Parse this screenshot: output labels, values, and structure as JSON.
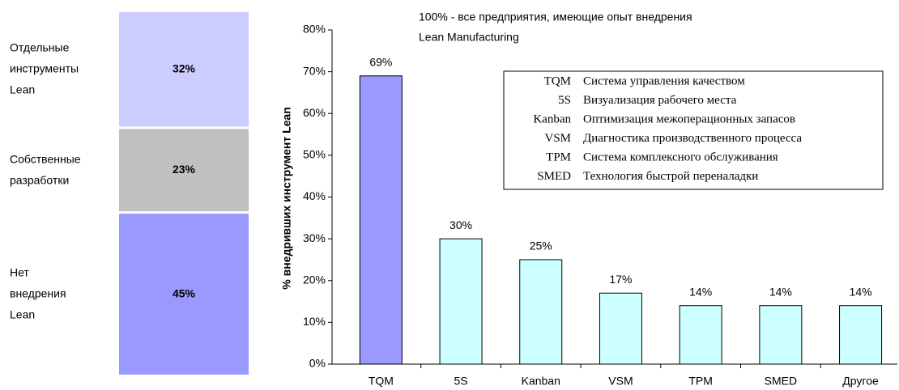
{
  "chart_data": [
    {
      "type": "stacked_bar",
      "categories": [
        "Отдельные инструменты Lean",
        "Собственные разработки",
        "Нет внедрения Lean"
      ],
      "values": [
        32,
        23,
        45
      ],
      "value_labels": [
        "32%",
        "23%",
        "45%"
      ],
      "colors": [
        "#ccccff",
        "#c0c0c0",
        "#9999ff"
      ]
    },
    {
      "type": "bar",
      "annotation": [
        "100% -  все предприятия, имеющие опыт внедрения",
        "Lean Manufacturing"
      ],
      "y_label": "% внедривших инструмент Lean",
      "categories": [
        "TQM",
        "5S",
        "Kanban",
        "VSM",
        "TPM",
        "SMED",
        "Другое"
      ],
      "values": [
        69,
        30,
        25,
        17,
        14,
        14,
        14
      ],
      "value_labels": [
        "69%",
        "30%",
        "25%",
        "17%",
        "14%",
        "14%",
        "14%"
      ],
      "colors": [
        "#9999ff",
        "#ccffff",
        "#ccffff",
        "#ccffff",
        "#ccffff",
        "#ccffff",
        "#ccffff"
      ],
      "ylim": [
        0,
        80
      ],
      "yticks": [
        {
          "value": 0,
          "label": "0%"
        },
        {
          "value": 10,
          "label": "10%"
        },
        {
          "value": 20,
          "label": "20%"
        },
        {
          "value": 30,
          "label": "30%"
        },
        {
          "value": 40,
          "label": "40%"
        },
        {
          "value": 50,
          "label": "50%"
        },
        {
          "value": 60,
          "label": "60%"
        },
        {
          "value": 70,
          "label": "70%"
        },
        {
          "value": 80,
          "label": "80%"
        }
      ],
      "legend": [
        {
          "abbr": "TQM",
          "text": "Система управления качеством"
        },
        {
          "abbr": "5S",
          "text": "Визуализация рабочего места"
        },
        {
          "abbr": "Kanban",
          "text": "Оптимизация межоперационных запасов"
        },
        {
          "abbr": "VSM",
          "text": "Диагностика производственного процесса"
        },
        {
          "abbr": "TPM",
          "text": "Система комплексного обслуживания"
        },
        {
          "abbr": "SMED",
          "text": "Технология быстрой переналадки"
        }
      ]
    }
  ]
}
